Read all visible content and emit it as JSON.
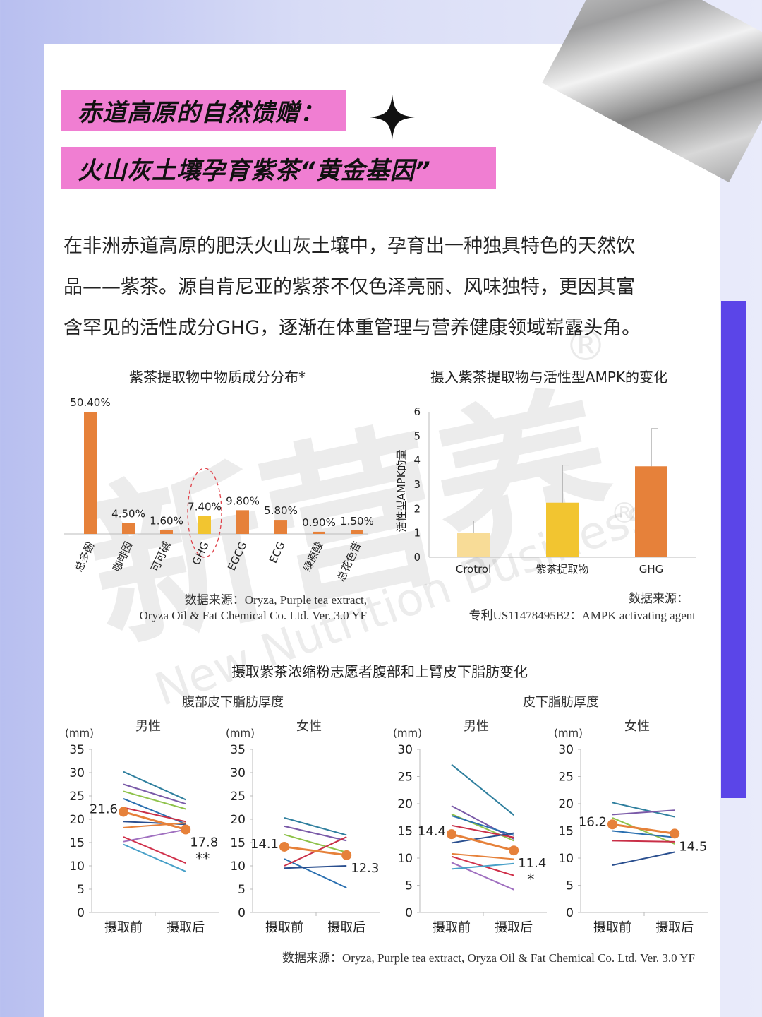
{
  "header": {
    "line1": "赤道高原的自然馈赠：",
    "line2": "火山灰土壤孕育紫茶“黄金基因”"
  },
  "intro": {
    "line1": "在非洲赤道高原的肥沃火山灰土壤中，孕育出一种独具特色的天然饮",
    "line2": "品——紫茶。源自肯尼亚的紫茶不仅色泽亮丽、风味独特，更因其富",
    "line3": "含罕见的活性成分GHG，逐渐在体重管理与营养健康领域崭露头角。"
  },
  "watermark": {
    "brand_cn": "新营养",
    "brand_en": "New Nutrition Business",
    "reg": "®"
  },
  "colors": {
    "pink": "#f07ed2",
    "accent_purple": "#5b45e8",
    "orange": "#e6813a",
    "yellow": "#f2c530",
    "light_yellow": "#f8dc97"
  },
  "chart1": {
    "title": "紫茶提取物中物质成分分布*",
    "source_line1": "数据来源：Oryza, Purple tea extract,",
    "source_line2": "Oryza Oil & Fat Chemical Co. Ltd. Ver. 3.0 YF"
  },
  "chart2": {
    "title": "摄入紫茶提取物与活性型AMPK的变化",
    "ylabel": "活性型AMPK的量",
    "source_line1": "数据来源：",
    "source_line2": "专利US11478495B2：AMPK activating agent"
  },
  "chart3": {
    "title": "摄取紫茶浓缩粉志愿者腹部和上臂皮下脂肪变化",
    "group_left": "腹部皮下脂肪厚度",
    "group_right": "皮下脂肪厚度",
    "source": "数据来源：Oryza, Purple tea extract, Oryza Oil & Fat Chemical Co. Ltd. Ver. 3.0 YF"
  },
  "chart_data": [
    {
      "type": "bar",
      "title": "紫茶提取物中物质成分分布*",
      "categories": [
        "总多酚",
        "咖啡因",
        "可可碱",
        "GHG",
        "EGCG",
        "ECG",
        "绿原酸",
        "总花色苷"
      ],
      "values": [
        50.4,
        4.5,
        1.6,
        7.4,
        9.8,
        5.8,
        0.9,
        1.5
      ],
      "labels": [
        "50.40%",
        "4.50%",
        "1.60%",
        "7.40%",
        "9.80%",
        "5.80%",
        "0.90%",
        "1.50%"
      ],
      "highlight": "GHG",
      "ylim": [
        0,
        52
      ]
    },
    {
      "type": "bar",
      "title": "摄入紫茶提取物与活性型AMPK的变化",
      "categories": [
        "Crotrol",
        "紫茶提取物",
        "GHG"
      ],
      "values": [
        1.0,
        2.25,
        3.75
      ],
      "error": [
        0.5,
        1.55,
        1.55
      ],
      "ylabel": "活性型AMPK的量",
      "ylim": [
        0,
        6
      ],
      "yticks": [
        0,
        1,
        2,
        3,
        4,
        5,
        6
      ]
    },
    {
      "type": "line",
      "group": "腹部皮下脂肪厚度",
      "panel_title": "男性",
      "unit": "(mm)",
      "x": [
        "摄取前",
        "摄取后"
      ],
      "ylim": [
        0,
        35
      ],
      "yticks": [
        0,
        5,
        10,
        15,
        20,
        25,
        30,
        35
      ],
      "mean": [
        21.6,
        17.8
      ],
      "mean_labels": [
        "21.6",
        "17.8"
      ],
      "significance": "**",
      "individuals": [
        [
          30.2,
          24.2
        ],
        [
          27.5,
          23.3
        ],
        [
          26.0,
          22.2
        ],
        [
          24.4,
          19.0
        ],
        [
          22.5,
          19.5
        ],
        [
          19.5,
          18.9
        ],
        [
          18.2,
          19.2
        ],
        [
          16.2,
          10.6
        ],
        [
          15.2,
          17.8
        ],
        [
          14.6,
          8.8
        ]
      ]
    },
    {
      "type": "line",
      "group": "腹部皮下脂肪厚度",
      "panel_title": "女性",
      "unit": "(mm)",
      "x": [
        "摄取前",
        "摄取后"
      ],
      "ylim": [
        0,
        35
      ],
      "yticks": [
        0,
        5,
        10,
        15,
        20,
        25,
        30,
        35
      ],
      "mean": [
        14.1,
        12.3
      ],
      "mean_labels": [
        "14.1",
        "12.3"
      ],
      "individuals": [
        [
          20.3,
          16.6
        ],
        [
          18.5,
          15.4
        ],
        [
          16.7,
          12.9
        ],
        [
          11.5,
          5.3
        ],
        [
          10.0,
          16.2
        ],
        [
          9.5,
          10.0
        ]
      ]
    },
    {
      "type": "line",
      "group": "皮下脂肪厚度",
      "panel_title": "男性",
      "unit": "(mm)",
      "x": [
        "摄取前",
        "摄取后"
      ],
      "ylim": [
        0,
        30
      ],
      "yticks": [
        0,
        5,
        10,
        15,
        20,
        25,
        30
      ],
      "mean": [
        14.4,
        11.4
      ],
      "mean_labels": [
        "14.4",
        "11.4"
      ],
      "significance": "*",
      "individuals": [
        [
          27.2,
          17.9
        ],
        [
          19.6,
          13.5
        ],
        [
          18.1,
          13.2
        ],
        [
          17.8,
          14.2
        ],
        [
          16.0,
          13.8
        ],
        [
          12.8,
          14.6
        ],
        [
          10.8,
          9.8
        ],
        [
          10.3,
          6.8
        ],
        [
          9.2,
          4.2
        ],
        [
          8.0,
          9.0
        ]
      ]
    },
    {
      "type": "line",
      "group": "皮下脂肪厚度",
      "panel_title": "女性",
      "unit": "(mm)",
      "x": [
        "摄取前",
        "摄取后"
      ],
      "ylim": [
        0,
        30
      ],
      "yticks": [
        0,
        5,
        10,
        15,
        20,
        25,
        30
      ],
      "mean": [
        16.2,
        14.5
      ],
      "mean_labels": [
        "16.2",
        "14.5"
      ],
      "individuals": [
        [
          20.2,
          17.6
        ],
        [
          18.0,
          18.8
        ],
        [
          17.4,
          12.6
        ],
        [
          15.0,
          13.8
        ],
        [
          13.2,
          13.0
        ],
        [
          8.7,
          11.1
        ]
      ]
    }
  ]
}
